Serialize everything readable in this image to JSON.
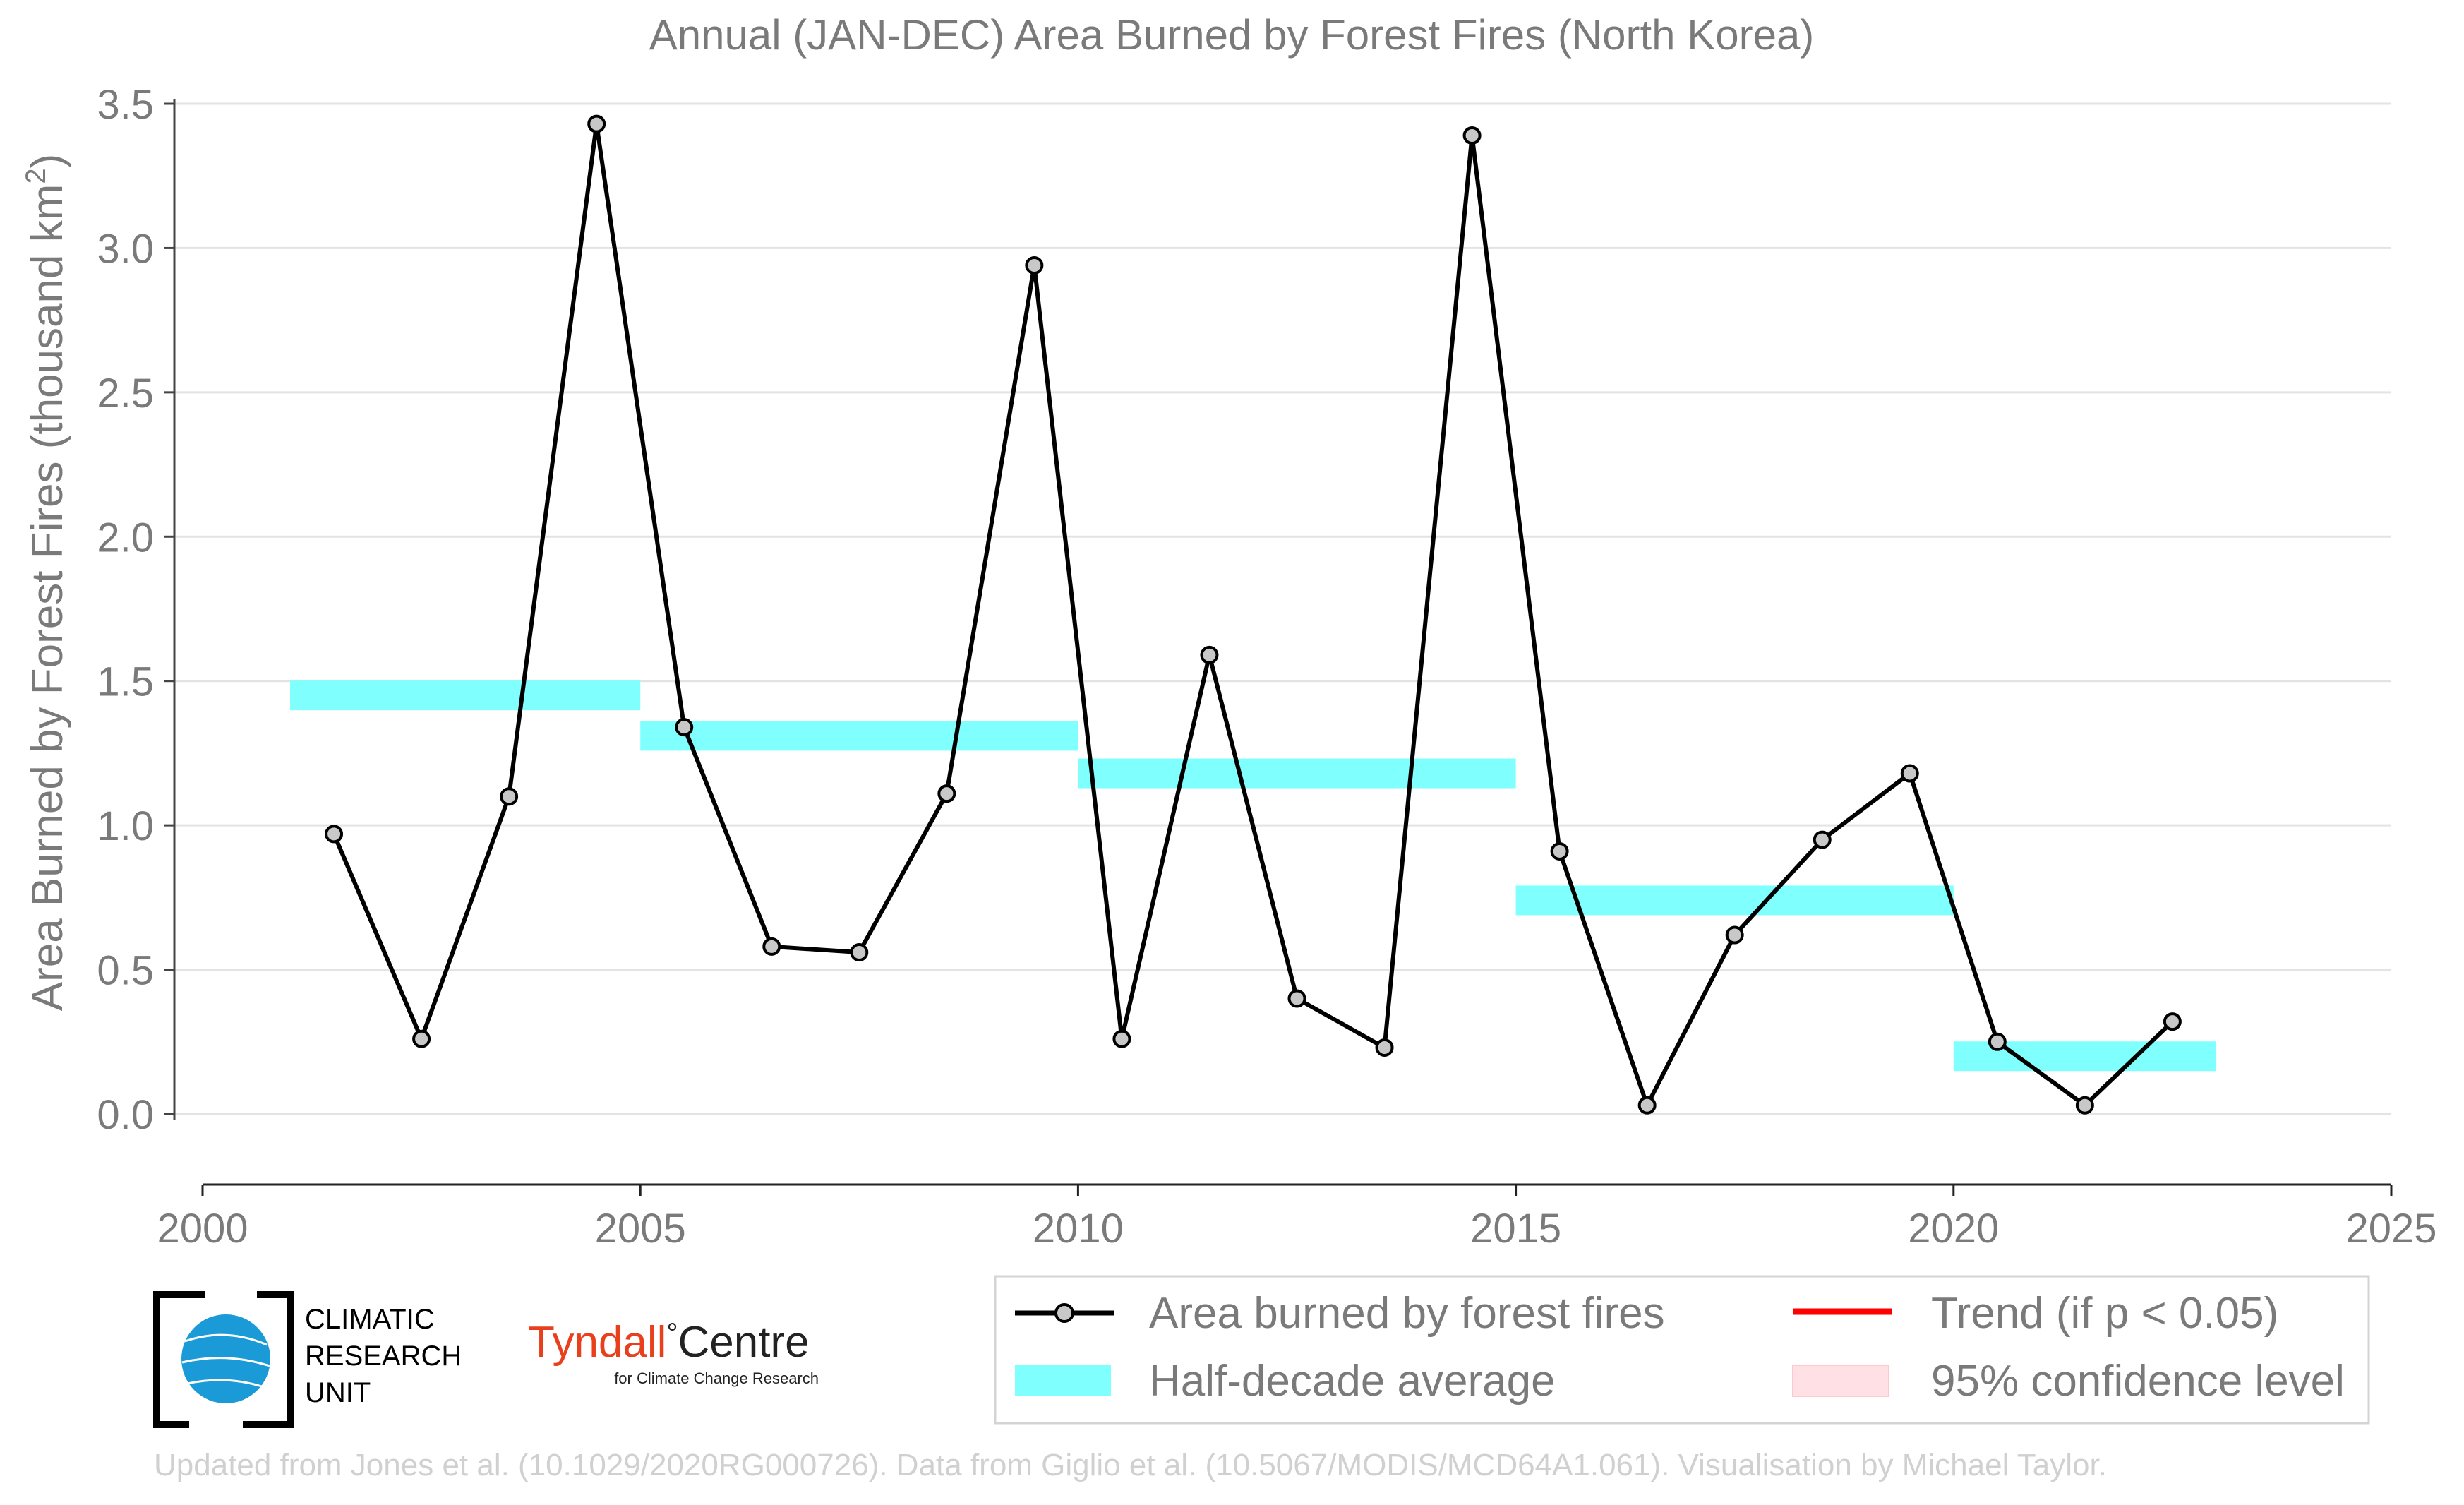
{
  "chart_data": {
    "type": "line",
    "title": "Annual (JAN-DEC) Area Burned by Forest Fires (North Korea)",
    "ylabel": "Area Burned by Forest Fires (thousand km",
    "ylabel_superscript": "2",
    "ylabel_close": ")",
    "xlabel": "",
    "xlim": [
      2000,
      2025
    ],
    "ylim": [
      -0.15,
      3.5
    ],
    "x_ticks": [
      2000,
      2005,
      2010,
      2015,
      2020,
      2025
    ],
    "y_ticks": [
      0.0,
      0.5,
      1.0,
      1.5,
      2.0,
      2.5,
      3.0,
      3.5
    ],
    "y_tick_labels": [
      "0.0",
      "0.5",
      "1.0",
      "1.5",
      "2.0",
      "2.5",
      "3.0",
      "3.5"
    ],
    "grid": "horizontal",
    "series": [
      {
        "name": "Area burned by forest fires",
        "color": "#000000",
        "marker_fill": "#c8c8c8",
        "x": [
          2001.5,
          2002.5,
          2003.5,
          2004.5,
          2005.5,
          2006.5,
          2007.5,
          2008.5,
          2009.5,
          2010.5,
          2011.5,
          2012.5,
          2013.5,
          2014.5,
          2015.5,
          2016.5,
          2017.5,
          2018.5,
          2019.5,
          2020.5,
          2021.5,
          2022.5
        ],
        "y": [
          0.97,
          0.26,
          1.1,
          3.43,
          1.34,
          0.58,
          0.56,
          1.11,
          2.94,
          0.26,
          1.59,
          0.4,
          0.23,
          3.39,
          0.91,
          0.03,
          0.62,
          0.95,
          1.18,
          0.25,
          0.03,
          0.32
        ]
      }
    ],
    "half_decade_average": {
      "name": "Half-decade average",
      "color": "#80ffff",
      "segments": [
        {
          "x0": 2001,
          "x1": 2005,
          "y": 1.45
        },
        {
          "x0": 2005,
          "x1": 2010,
          "y": 1.31
        },
        {
          "x0": 2010,
          "x1": 2015,
          "y": 1.18
        },
        {
          "x0": 2015,
          "x1": 2020,
          "y": 0.74
        },
        {
          "x0": 2020,
          "x1": 2023,
          "y": 0.2
        }
      ]
    },
    "legend": {
      "placement": "bottom-right",
      "items": [
        {
          "label": "Area burned by forest fires",
          "kind": "line-marker",
          "color": "#000000"
        },
        {
          "label": "Trend (if p < 0.05)",
          "kind": "line",
          "color": "#ff0000"
        },
        {
          "label": "Half-decade average",
          "kind": "patch",
          "color": "#80ffff"
        },
        {
          "label": "95% confidence level",
          "kind": "patch",
          "color": "#ffe0e4"
        }
      ]
    }
  },
  "logos": {
    "cru_text": [
      "CLIMATIC",
      "RESEARCH",
      "UNIT"
    ],
    "cru_accent": "#1a9ad6",
    "tyndall_main": "Tyndall",
    "tyndall_degree": "°",
    "tyndall_centre": "Centre",
    "tyndall_sub": "for Climate Change Research",
    "tyndall_color": "#e8401c"
  },
  "credit": "Updated from Jones et al. (10.1029/2020RG000726). Data from Giglio et al. (10.5067/MODIS/MCD64A1.061). Visualisation by Michael Taylor."
}
